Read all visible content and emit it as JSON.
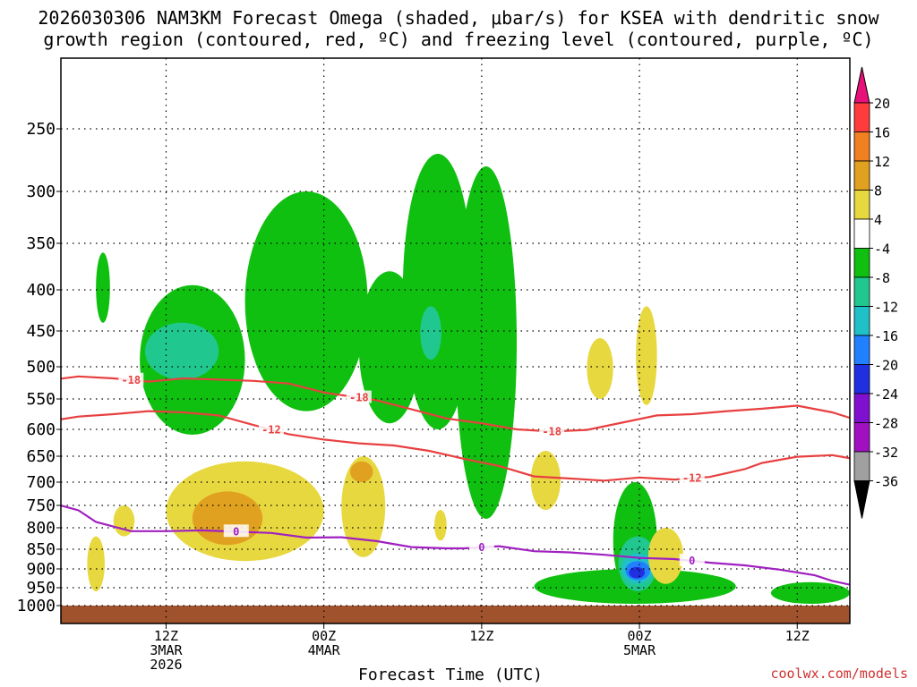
{
  "title": {
    "line1": "2026030306 NAM3KM Forecast Omega (shaded, μbar/s) for KSEA with dendritic snow",
    "line2": "growth region (contoured, red, ºC) and freezing level (contoured, purple, ºC)"
  },
  "watermark": "coolwx.com/models",
  "chart_data": {
    "type": "heatmap",
    "xlabel": "Forecast Time (UTC)",
    "ylabel": "",
    "y_scale": "pressure (hPa), log-like, inverted",
    "ylim": [
      1000,
      200
    ],
    "x_range_hours": [
      6,
      51
    ],
    "grid": true,
    "y_ticks": [
      250,
      300,
      350,
      400,
      450,
      500,
      550,
      600,
      650,
      700,
      750,
      800,
      850,
      900,
      950,
      1000
    ],
    "x_ticks": [
      {
        "hour": 12,
        "lines": [
          "12Z",
          "3MAR",
          "2026"
        ]
      },
      {
        "hour": 21,
        "lines": [
          "00Z",
          "4MAR"
        ]
      },
      {
        "hour": 30,
        "lines": [
          "12Z"
        ]
      },
      {
        "hour": 39,
        "lines": [
          "00Z",
          "5MAR"
        ]
      },
      {
        "hour": 48,
        "lines": [
          "12Z"
        ]
      }
    ],
    "colorbar": {
      "levels": [
        20,
        16,
        12,
        8,
        4,
        -4,
        -8,
        -12,
        -16,
        -20,
        -24,
        -28,
        -32,
        -36
      ],
      "colors": [
        "#ff3c3c",
        "#f08020",
        "#e0a020",
        "#e8d840",
        "#ffffff",
        "#10c010",
        "#20c890",
        "#20c0c8",
        "#2080ff",
        "#2030e0",
        "#8010d0",
        "#a010c0",
        "#a0a0a0"
      ],
      "top_extend_color": "#e8107a",
      "bottom_extend_color": "#000000"
    },
    "terrain_color": "#a0522d",
    "contours": [
      {
        "label": "-18",
        "color": "#e84040",
        "labels_at_hours": [
          10,
          23,
          34
        ],
        "points": [
          [
            5,
            522
          ],
          [
            7,
            515
          ],
          [
            9,
            518
          ],
          [
            11,
            523
          ],
          [
            13,
            518
          ],
          [
            15,
            520
          ],
          [
            17,
            522
          ],
          [
            19,
            526
          ],
          [
            21,
            540
          ],
          [
            23,
            548
          ],
          [
            24,
            552
          ],
          [
            26,
            567
          ],
          [
            28,
            582
          ],
          [
            30,
            590
          ],
          [
            32,
            600
          ],
          [
            34,
            604
          ],
          [
            36,
            601
          ],
          [
            38,
            589
          ],
          [
            40,
            577
          ],
          [
            42,
            575
          ],
          [
            44,
            570
          ],
          [
            46,
            566
          ],
          [
            48,
            561
          ],
          [
            50,
            572
          ],
          [
            51,
            581
          ]
        ]
      },
      {
        "label": "-12",
        "color": "#e84040",
        "labels_at_hours": [
          18,
          42
        ],
        "points": [
          [
            5,
            588
          ],
          [
            7,
            579
          ],
          [
            9,
            575
          ],
          [
            11,
            570
          ],
          [
            13,
            572
          ],
          [
            15,
            577
          ],
          [
            17,
            593
          ],
          [
            19,
            609
          ],
          [
            21,
            619
          ],
          [
            23,
            626
          ],
          [
            25,
            630
          ],
          [
            27,
            640
          ],
          [
            29,
            655
          ],
          [
            31,
            669
          ],
          [
            33,
            689
          ],
          [
            35,
            693
          ],
          [
            37,
            697
          ],
          [
            39,
            691
          ],
          [
            41,
            695
          ],
          [
            43,
            690
          ],
          [
            45,
            675
          ],
          [
            46,
            663
          ],
          [
            48,
            651
          ],
          [
            50,
            648
          ],
          [
            51,
            654
          ]
        ]
      },
      {
        "label": "0",
        "color": "#a020c0",
        "labels_at_hours": [
          16,
          30,
          42
        ],
        "points": [
          [
            5,
            740
          ],
          [
            7,
            761
          ],
          [
            8,
            787
          ],
          [
            10,
            808
          ],
          [
            12,
            808
          ],
          [
            14,
            806
          ],
          [
            16,
            809
          ],
          [
            18,
            812
          ],
          [
            20,
            823
          ],
          [
            22,
            822
          ],
          [
            24,
            831
          ],
          [
            26,
            845
          ],
          [
            28,
            848
          ],
          [
            29,
            848
          ],
          [
            31,
            843
          ],
          [
            33,
            855
          ],
          [
            35,
            858
          ],
          [
            37,
            864
          ],
          [
            39,
            872
          ],
          [
            41,
            875
          ],
          [
            43,
            884
          ],
          [
            45,
            891
          ],
          [
            47,
            902
          ],
          [
            49,
            917
          ],
          [
            50,
            932
          ],
          [
            51,
            942
          ]
        ]
      }
    ],
    "shaded_regions": [
      {
        "value": -6,
        "color": "#10c010",
        "hours": [
          8.0,
          8.8
        ],
        "pressure": [
          360,
          440
        ]
      },
      {
        "value": -6,
        "color": "#10c010",
        "hours": [
          10.5,
          16.5
        ],
        "pressure": [
          395,
          610
        ]
      },
      {
        "value": -6,
        "color": "#10c010",
        "hours": [
          16.5,
          23.5
        ],
        "pressure": [
          300,
          570
        ]
      },
      {
        "value": -6,
        "color": "#10c010",
        "hours": [
          23.0,
          26.5
        ],
        "pressure": [
          380,
          590
        ]
      },
      {
        "value": -6,
        "color": "#10c010",
        "hours": [
          25.5,
          29.5
        ],
        "pressure": [
          270,
          600
        ]
      },
      {
        "value": -6,
        "color": "#10c010",
        "hours": [
          28.5,
          32.0
        ],
        "pressure": [
          280,
          780
        ]
      },
      {
        "value": -6,
        "color": "#10c010",
        "hours": [
          37.5,
          40.0
        ],
        "pressure": [
          700,
          980
        ]
      },
      {
        "value": -6,
        "color": "#10c010",
        "hours": [
          33.0,
          44.5
        ],
        "pressure": [
          900,
          995
        ]
      },
      {
        "value": -6,
        "color": "#10c010",
        "hours": [
          46.5,
          51.0
        ],
        "pressure": [
          935,
          995
        ]
      },
      {
        "value": -10,
        "color": "#20c890",
        "hours": [
          10.8,
          15.0
        ],
        "pressure": [
          440,
          520
        ]
      },
      {
        "value": -10,
        "color": "#20c890",
        "hours": [
          26.5,
          27.7
        ],
        "pressure": [
          420,
          490
        ]
      },
      {
        "value": -10,
        "color": "#20c890",
        "hours": [
          37.8,
          40.0
        ],
        "pressure": [
          820,
          960
        ]
      },
      {
        "value": -14,
        "color": "#20c0c8",
        "hours": [
          38.0,
          39.8
        ],
        "pressure": [
          860,
          940
        ]
      },
      {
        "value": -18,
        "color": "#2080ff",
        "hours": [
          38.2,
          39.6
        ],
        "pressure": [
          880,
          930
        ]
      },
      {
        "value": -22,
        "color": "#2030e0",
        "hours": [
          38.4,
          39.3
        ],
        "pressure": [
          895,
          925
        ]
      },
      {
        "value": 6,
        "color": "#e8d840",
        "hours": [
          7.5,
          8.5
        ],
        "pressure": [
          820,
          960
        ]
      },
      {
        "value": 6,
        "color": "#e8d840",
        "hours": [
          9.0,
          10.2
        ],
        "pressure": [
          750,
          820
        ]
      },
      {
        "value": 6,
        "color": "#e8d840",
        "hours": [
          12.0,
          21.0
        ],
        "pressure": [
          660,
          880
        ]
      },
      {
        "value": 6,
        "color": "#e8d840",
        "hours": [
          22.0,
          24.5
        ],
        "pressure": [
          650,
          870
        ]
      },
      {
        "value": 6,
        "color": "#e8d840",
        "hours": [
          27.3,
          28.0
        ],
        "pressure": [
          760,
          830
        ]
      },
      {
        "value": 6,
        "color": "#e8d840",
        "hours": [
          32.8,
          34.5
        ],
        "pressure": [
          640,
          760
        ]
      },
      {
        "value": 6,
        "color": "#e8d840",
        "hours": [
          36.0,
          37.5
        ],
        "pressure": [
          460,
          550
        ]
      },
      {
        "value": 6,
        "color": "#e8d840",
        "hours": [
          38.8,
          40.0
        ],
        "pressure": [
          420,
          560
        ]
      },
      {
        "value": 6,
        "color": "#e8d840",
        "hours": [
          39.5,
          41.5
        ],
        "pressure": [
          800,
          940
        ]
      },
      {
        "value": 10,
        "color": "#e0a020",
        "hours": [
          13.5,
          17.5
        ],
        "pressure": [
          720,
          840
        ]
      },
      {
        "value": 10,
        "color": "#e0a020",
        "hours": [
          22.5,
          23.8
        ],
        "pressure": [
          660,
          700
        ]
      }
    ]
  }
}
